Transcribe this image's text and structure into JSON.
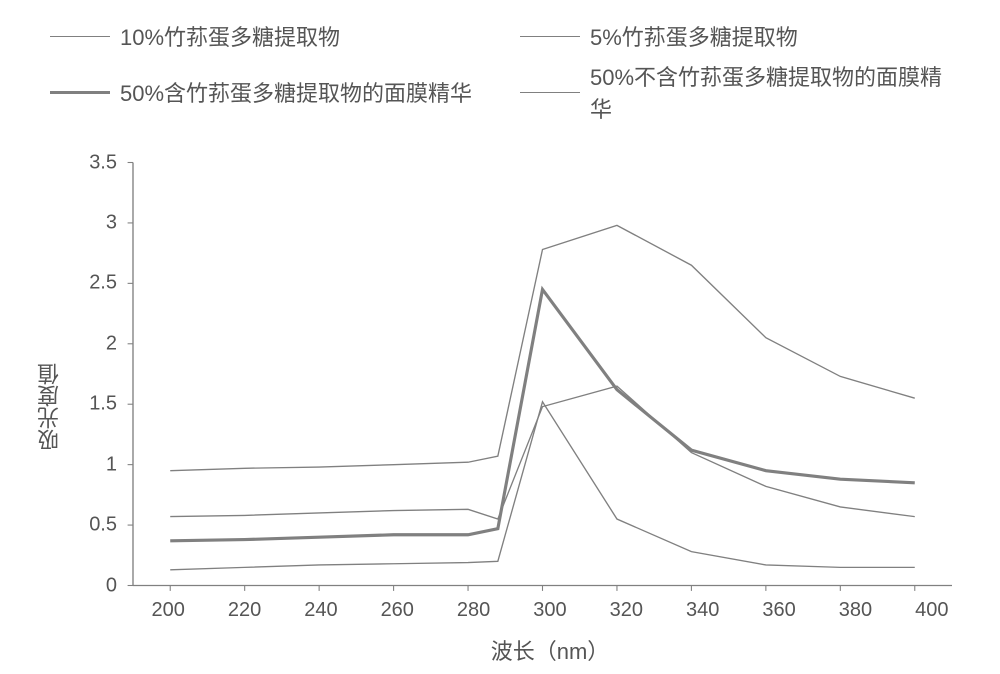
{
  "chart": {
    "type": "line",
    "background_color": "#ffffff",
    "line_color": "#808080",
    "axis_color": "#808080",
    "text_color": "#555555",
    "font_size_label": 22,
    "font_size_tick": 20,
    "xlabel": "波长（nm）",
    "ylabel": "吸光度值",
    "xlim": [
      200,
      400
    ],
    "ylim": [
      0,
      3.5
    ],
    "xtick_step": 20,
    "ytick_step": 0.5,
    "xticks": [
      "200",
      "220",
      "240",
      "260",
      "280",
      "300",
      "320",
      "340",
      "360",
      "380",
      "400"
    ],
    "yticks": [
      "0",
      "0.5",
      "1",
      "1.5",
      "2",
      "2.5",
      "3",
      "3.5"
    ],
    "x": [
      200,
      220,
      240,
      260,
      280,
      300,
      320,
      340,
      360,
      380,
      400
    ],
    "legend": [
      {
        "label": "10%竹荪蛋多糖提取物",
        "thickness": 1.5
      },
      {
        "label": "5%竹荪蛋多糖提取物",
        "thickness": 1.5
      },
      {
        "label": "50%含竹荪蛋多糖提取物的面膜精华",
        "thickness": 3.5
      },
      {
        "label": "50%不含竹荪蛋多糖提取物的面膜精华",
        "thickness": 1.5
      }
    ],
    "series": [
      {
        "name": "10pct",
        "thickness": 1.5,
        "y": [
          0.95,
          0.97,
          0.98,
          1.0,
          1.02,
          1.07,
          2.78,
          2.98,
          2.65,
          2.05,
          1.73,
          1.55
        ]
      },
      {
        "name": "5pct",
        "thickness": 1.5,
        "y": [
          0.57,
          0.58,
          0.6,
          0.62,
          0.63,
          0.55,
          1.48,
          1.65,
          1.1,
          0.82,
          0.65,
          0.57
        ]
      },
      {
        "name": "50pct_with",
        "thickness": 3.5,
        "y": [
          0.37,
          0.38,
          0.4,
          0.42,
          0.42,
          0.47,
          2.45,
          1.62,
          1.12,
          0.95,
          0.88,
          0.85
        ]
      },
      {
        "name": "50pct_without",
        "thickness": 1.5,
        "y": [
          0.13,
          0.15,
          0.17,
          0.18,
          0.19,
          0.2,
          1.52,
          0.55,
          0.28,
          0.17,
          0.15,
          0.15
        ]
      }
    ]
  }
}
